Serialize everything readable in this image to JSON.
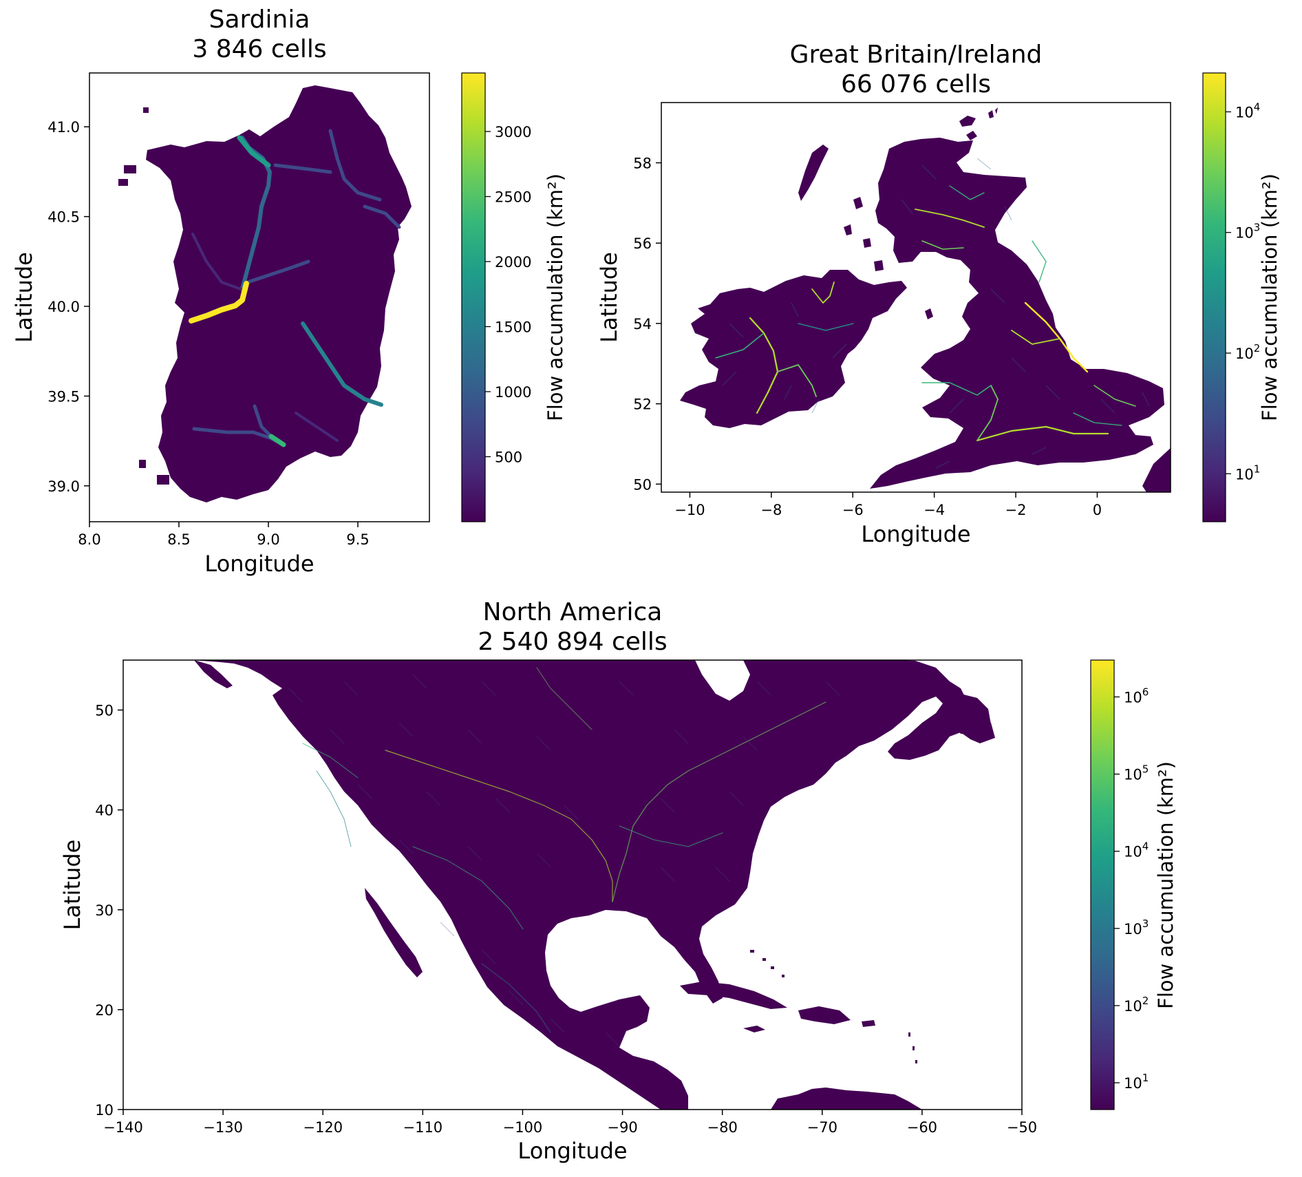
{
  "panels": {
    "sardinia": {
      "title_line1": "Sardinia",
      "title_line2": "3 846 cells",
      "xlabel": "Longitude",
      "ylabel": "Latitude",
      "xlim": [
        8.0,
        9.9
      ],
      "ylim": [
        38.8,
        41.3
      ],
      "xticks": [
        {
          "v": 8.0,
          "label": "8.0"
        },
        {
          "v": 8.5,
          "label": "8.5"
        },
        {
          "v": 9.0,
          "label": "9.0"
        },
        {
          "v": 9.5,
          "label": "9.5"
        }
      ],
      "yticks": [
        {
          "v": 39.0,
          "label": "39.0"
        },
        {
          "v": 39.5,
          "label": "39.5"
        },
        {
          "v": 40.0,
          "label": "40.0"
        },
        {
          "v": 40.5,
          "label": "40.5"
        },
        {
          "v": 41.0,
          "label": "41.0"
        }
      ],
      "colorbar": {
        "label": "Flow accumulation (km²)",
        "scale": "linear",
        "range": [
          0,
          3450
        ],
        "ticks": [
          {
            "v": 500,
            "label": "500"
          },
          {
            "v": 1000,
            "label": "1000"
          },
          {
            "v": 1500,
            "label": "1500"
          },
          {
            "v": 2000,
            "label": "2000"
          },
          {
            "v": 2500,
            "label": "2500"
          },
          {
            "v": 3000,
            "label": "3000"
          }
        ]
      }
    },
    "great_britain": {
      "title_line1": "Great Britain/Ireland",
      "title_line2": "66 076 cells",
      "xlabel": "Longitude",
      "ylabel": "Latitude",
      "xlim": [
        -10.7,
        1.8
      ],
      "ylim": [
        49.8,
        59.5
      ],
      "xticks": [
        {
          "v": -10,
          "label": "−10"
        },
        {
          "v": -8,
          "label": "−8"
        },
        {
          "v": -6,
          "label": "−6"
        },
        {
          "v": -4,
          "label": "−4"
        },
        {
          "v": -2,
          "label": "−2"
        },
        {
          "v": 0,
          "label": "0"
        }
      ],
      "yticks": [
        {
          "v": 50,
          "label": "50"
        },
        {
          "v": 52,
          "label": "52"
        },
        {
          "v": 54,
          "label": "54"
        },
        {
          "v": 56,
          "label": "56"
        },
        {
          "v": 58,
          "label": "58"
        }
      ],
      "colorbar": {
        "label": "Flow accumulation (km²)",
        "scale": "log",
        "range": [
          4,
          21000
        ],
        "ticks": [
          {
            "v": 10,
            "base": "10",
            "exp": "1"
          },
          {
            "v": 100,
            "base": "10",
            "exp": "2"
          },
          {
            "v": 1000,
            "base": "10",
            "exp": "3"
          },
          {
            "v": 10000,
            "base": "10",
            "exp": "4"
          }
        ]
      }
    },
    "north_america": {
      "title_line1": "North America",
      "title_line2": "2 540 894 cells",
      "xlabel": "Longitude",
      "ylabel": "Latitude",
      "xlim": [
        -140,
        -50
      ],
      "ylim": [
        10,
        55
      ],
      "xticks": [
        {
          "v": -140,
          "label": "−140"
        },
        {
          "v": -130,
          "label": "−130"
        },
        {
          "v": -120,
          "label": "−120"
        },
        {
          "v": -110,
          "label": "−110"
        },
        {
          "v": -100,
          "label": "−100"
        },
        {
          "v": -90,
          "label": "−90"
        },
        {
          "v": -80,
          "label": "−80"
        },
        {
          "v": -70,
          "label": "−70"
        },
        {
          "v": -60,
          "label": "−60"
        },
        {
          "v": -50,
          "label": "−50"
        }
      ],
      "yticks": [
        {
          "v": 10,
          "label": "10"
        },
        {
          "v": 20,
          "label": "20"
        },
        {
          "v": 30,
          "label": "30"
        },
        {
          "v": 40,
          "label": "40"
        },
        {
          "v": 50,
          "label": "50"
        }
      ],
      "colorbar": {
        "label": "Flow accumulation (km²)",
        "scale": "log",
        "range": [
          4.5,
          3000000
        ],
        "ticks": [
          {
            "v": 10,
            "base": "10",
            "exp": "1"
          },
          {
            "v": 100,
            "base": "10",
            "exp": "2"
          },
          {
            "v": 1000,
            "base": "10",
            "exp": "3"
          },
          {
            "v": 10000,
            "base": "10",
            "exp": "4"
          },
          {
            "v": 100000,
            "base": "10",
            "exp": "5"
          },
          {
            "v": 1000000,
            "base": "10",
            "exp": "6"
          }
        ]
      }
    }
  },
  "colors": {
    "land": "#440154",
    "viridis": [
      "#440154",
      "#482878",
      "#3e4989",
      "#31688e",
      "#26828e",
      "#1f9e89",
      "#35b779",
      "#6ece58",
      "#b5de2b",
      "#fde725"
    ]
  }
}
